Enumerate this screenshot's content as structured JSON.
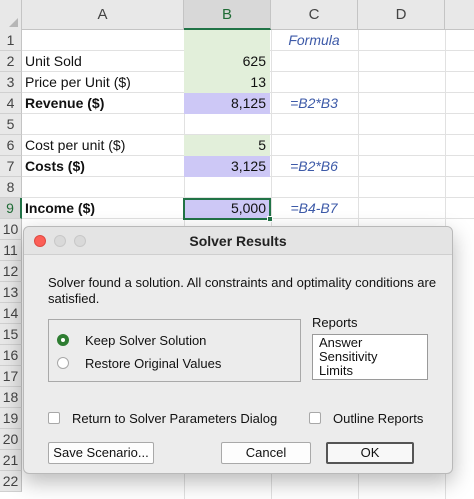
{
  "columns": [
    "A",
    "B",
    "C",
    "D"
  ],
  "rows": [
    "1",
    "2",
    "3",
    "4",
    "5",
    "6",
    "7",
    "8",
    "9",
    "10",
    "11",
    "12",
    "13",
    "14",
    "15",
    "16",
    "17",
    "18",
    "19",
    "20",
    "21",
    "22"
  ],
  "cells": {
    "c1": "Formula",
    "a2": "Unit Sold",
    "b2": "625",
    "a3": "Price per Unit ($)",
    "b3": "13",
    "a4": "Revenue ($)",
    "b4": "8,125",
    "c4": "=B2*B3",
    "a6": "Cost per unit ($)",
    "b6": "5",
    "a7": "Costs ($)",
    "b7": "3,125",
    "c7": "=B2*B6",
    "a9": "Income ($)",
    "b9": "5,000",
    "c9": "=B4-B7"
  },
  "colors": {
    "input_fill": "#e2efda",
    "result_fill": "#cdc8f6",
    "formula_text": "#3d5aa8",
    "selection": "#217346"
  },
  "dialog": {
    "title": "Solver Results",
    "message": "Solver found a solution.  All constraints and optimality conditions are satisfied.",
    "radio_keep": "Keep Solver Solution",
    "radio_restore": "Restore Original Values",
    "reports_label": "Reports",
    "reports": [
      "Answer",
      "Sensitivity",
      "Limits"
    ],
    "return_label": "Return to Solver Parameters Dialog",
    "outline_label": "Outline Reports",
    "save_scenario": "Save Scenario...",
    "cancel": "Cancel",
    "ok": "OK"
  }
}
